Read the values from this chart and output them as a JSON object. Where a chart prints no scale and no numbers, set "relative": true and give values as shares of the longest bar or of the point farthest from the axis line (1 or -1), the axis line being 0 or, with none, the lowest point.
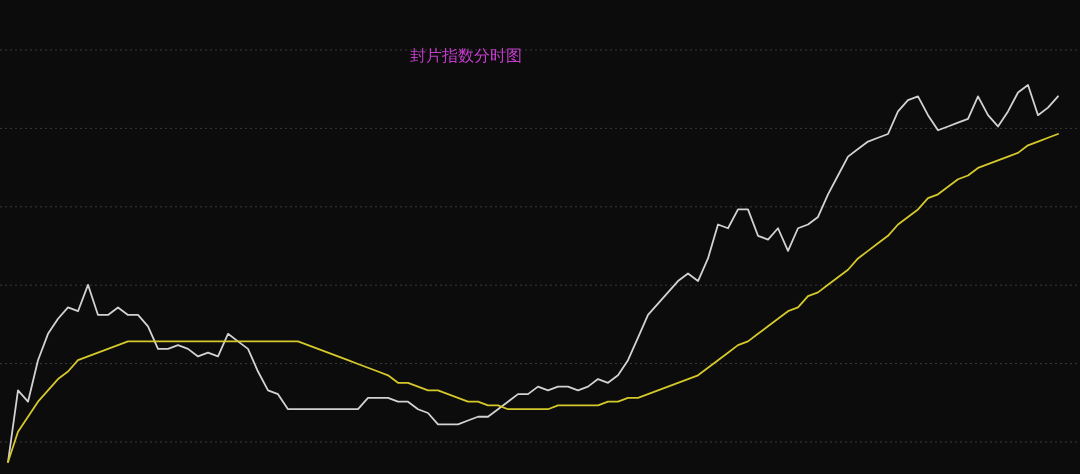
{
  "chart_data": {
    "type": "line",
    "title": "封片指数分时图",
    "relative": true,
    "grid": "y",
    "categories": [
      null,
      null,
      null,
      null,
      null,
      null,
      null,
      null,
      null,
      null,
      null,
      null,
      null,
      null,
      null,
      null,
      null,
      null,
      null,
      null,
      null,
      null,
      null,
      null,
      null,
      null,
      null,
      null,
      null,
      null,
      null,
      null,
      null,
      null,
      null,
      null,
      null,
      null,
      null,
      null,
      null,
      null,
      null,
      null,
      null,
      null,
      null,
      null,
      null,
      null,
      null,
      null,
      null,
      null,
      null,
      null,
      null,
      null,
      null,
      null,
      null,
      null,
      null,
      null,
      null,
      null,
      null,
      null,
      null,
      null,
      null,
      null,
      null,
      null,
      null,
      null,
      null,
      null,
      null,
      null,
      null,
      null,
      null,
      null,
      null,
      null,
      null,
      null,
      null,
      null,
      null,
      null,
      null,
      null,
      null,
      null,
      null,
      null,
      null,
      null,
      null,
      null,
      null,
      null,
      null,
      null
    ],
    "series": [
      {
        "color": "#d2d2d2",
        "values": [
          0,
          0.19,
          0.16,
          0.27,
          0.34,
          0.38,
          0.41,
          0.4,
          0.47,
          0.39,
          0.39,
          0.41,
          0.39,
          0.39,
          0.36,
          0.3,
          0.3,
          0.31,
          0.3,
          0.28,
          0.29,
          0.28,
          0.34,
          0.32,
          0.3,
          0.24,
          0.19,
          0.18,
          0.14,
          0.14,
          0.14,
          0.14,
          0.14,
          0.14,
          0.14,
          0.14,
          0.17,
          0.17,
          0.17,
          0.16,
          0.16,
          0.14,
          0.13,
          0.1,
          0.1,
          0.1,
          0.11,
          0.12,
          0.12,
          0.14,
          0.16,
          0.18,
          0.18,
          0.2,
          0.19,
          0.2,
          0.2,
          0.19,
          0.2,
          0.22,
          0.21,
          0.23,
          0.27,
          0.33,
          0.39,
          0.42,
          0.45,
          0.48,
          0.5,
          0.48,
          0.54,
          0.63,
          0.62,
          0.67,
          0.67,
          0.6,
          0.59,
          0.62,
          0.56,
          0.62,
          0.63,
          0.65,
          0.71,
          0.76,
          0.81,
          0.83,
          0.85,
          0.86,
          0.87,
          0.93,
          0.96,
          0.97,
          0.92,
          0.88,
          0.89,
          0.9,
          0.91,
          0.97,
          0.92,
          0.89,
          0.93,
          0.98,
          1,
          0.92,
          0.94,
          0.97
        ]
      },
      {
        "color": "#d4c82a",
        "values": [
          0,
          0.08,
          0.12,
          0.16,
          0.19,
          0.22,
          0.24,
          0.27,
          0.28,
          0.29,
          0.3,
          0.31,
          0.32,
          0.32,
          0.32,
          0.32,
          0.32,
          0.32,
          0.32,
          0.32,
          0.32,
          0.32,
          0.32,
          0.32,
          0.32,
          0.32,
          0.32,
          0.32,
          0.32,
          0.32,
          0.31,
          0.3,
          0.29,
          0.28,
          0.27,
          0.26,
          0.25,
          0.24,
          0.23,
          0.21,
          0.21,
          0.2,
          0.19,
          0.19,
          0.18,
          0.17,
          0.16,
          0.16,
          0.15,
          0.15,
          0.14,
          0.14,
          0.14,
          0.14,
          0.14,
          0.15,
          0.15,
          0.15,
          0.15,
          0.15,
          0.16,
          0.16,
          0.17,
          0.17,
          0.18,
          0.19,
          0.2,
          0.21,
          0.22,
          0.23,
          0.25,
          0.27,
          0.29,
          0.31,
          0.32,
          0.34,
          0.36,
          0.38,
          0.4,
          0.41,
          0.44,
          0.45,
          0.47,
          0.49,
          0.51,
          0.54,
          0.56,
          0.58,
          0.6,
          0.63,
          0.65,
          0.67,
          0.7,
          0.71,
          0.73,
          0.75,
          0.76,
          0.78,
          0.79,
          0.8,
          0.81,
          0.82,
          0.84,
          0.85,
          0.86,
          0.87
        ]
      }
    ]
  }
}
